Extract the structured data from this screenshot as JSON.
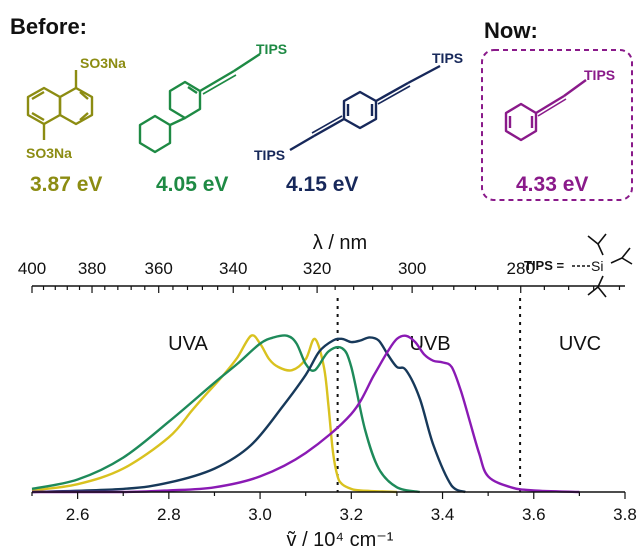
{
  "header": {
    "before_label": "Before:",
    "now_label": "Now:"
  },
  "molecules": [
    {
      "id": "naphthalene-disulfonate",
      "sub_top": "SO3Na",
      "sub_bottom": "SO3Na",
      "energy": "3.87 eV",
      "color": "#8c8c12"
    },
    {
      "id": "biphenyl-tips",
      "sub": "TIPS",
      "energy": "4.05 eV",
      "color": "#1e8a44"
    },
    {
      "id": "bis-tips-benzene",
      "sub_top": "TIPS",
      "sub_bottom": "TIPS",
      "energy": "4.15 eV",
      "color": "#17285a"
    },
    {
      "id": "phenyl-tips",
      "sub": "TIPS",
      "energy": "4.33 eV",
      "color": "#8a1a8a"
    }
  ],
  "tips_legend": {
    "label": "TIPS =",
    "atom": "Si"
  },
  "chart_data": {
    "type": "line",
    "x_axis": {
      "label": "ṽ / 10⁴ cm⁻¹",
      "range": [
        2.5,
        3.8
      ],
      "ticks": [
        "2.6",
        "2.8",
        "3.0",
        "3.2",
        "3.4",
        "3.6",
        "3.8"
      ]
    },
    "top_axis": {
      "label": "λ / nm",
      "ticks": [
        "400",
        "380",
        "360",
        "340",
        "320",
        "300",
        "280"
      ]
    },
    "regions": [
      {
        "name": "UVA"
      },
      {
        "name": "UVB"
      },
      {
        "name": "UVC"
      }
    ],
    "dividers": [
      3.17,
      3.57
    ],
    "y_range": [
      0,
      1.05
    ],
    "series": [
      {
        "color": "#d9c21f",
        "x": [
          2.5,
          2.6,
          2.7,
          2.8,
          2.85,
          2.88,
          2.92,
          2.95,
          2.98,
          3.0,
          3.02,
          3.04,
          3.07,
          3.1,
          3.12,
          3.14,
          3.15,
          3.16,
          3.17,
          3.18,
          3.2,
          3.22,
          3.3
        ],
        "y": [
          0.01,
          0.05,
          0.15,
          0.35,
          0.52,
          0.62,
          0.75,
          0.86,
          1.0,
          0.95,
          0.85,
          0.8,
          0.78,
          0.85,
          0.98,
          0.8,
          0.55,
          0.25,
          0.1,
          0.05,
          0.02,
          0.01,
          0.0
        ]
      },
      {
        "color": "#1e8a5a",
        "x": [
          2.5,
          2.6,
          2.7,
          2.8,
          2.9,
          2.95,
          3.0,
          3.03,
          3.06,
          3.08,
          3.1,
          3.12,
          3.15,
          3.18,
          3.2,
          3.23,
          3.26,
          3.3,
          3.35
        ],
        "y": [
          0.02,
          0.08,
          0.22,
          0.45,
          0.7,
          0.82,
          0.95,
          0.99,
          1.0,
          0.95,
          0.82,
          0.78,
          0.9,
          0.92,
          0.8,
          0.4,
          0.15,
          0.03,
          0.0
        ]
      },
      {
        "color": "#17395a",
        "x": [
          2.5,
          2.7,
          2.8,
          2.9,
          2.98,
          3.05,
          3.1,
          3.13,
          3.16,
          3.18,
          3.2,
          3.22,
          3.24,
          3.26,
          3.28,
          3.3,
          3.32,
          3.35,
          3.38,
          3.42,
          3.45
        ],
        "y": [
          0.0,
          0.02,
          0.06,
          0.15,
          0.3,
          0.55,
          0.75,
          0.9,
          0.97,
          0.98,
          0.96,
          0.97,
          0.99,
          0.97,
          0.88,
          0.8,
          0.78,
          0.6,
          0.3,
          0.04,
          0.0
        ]
      },
      {
        "color": "#8a1ab4",
        "x": [
          2.5,
          2.7,
          2.8,
          2.9,
          3.0,
          3.1,
          3.2,
          3.25,
          3.28,
          3.3,
          3.32,
          3.34,
          3.36,
          3.38,
          3.4,
          3.42,
          3.44,
          3.46,
          3.48,
          3.5,
          3.55,
          3.6,
          3.7
        ],
        "y": [
          0.0,
          0.0,
          0.01,
          0.03,
          0.1,
          0.25,
          0.5,
          0.75,
          0.9,
          0.98,
          1.0,
          0.96,
          0.88,
          0.84,
          0.83,
          0.8,
          0.65,
          0.45,
          0.25,
          0.1,
          0.03,
          0.01,
          0.0
        ]
      }
    ]
  }
}
